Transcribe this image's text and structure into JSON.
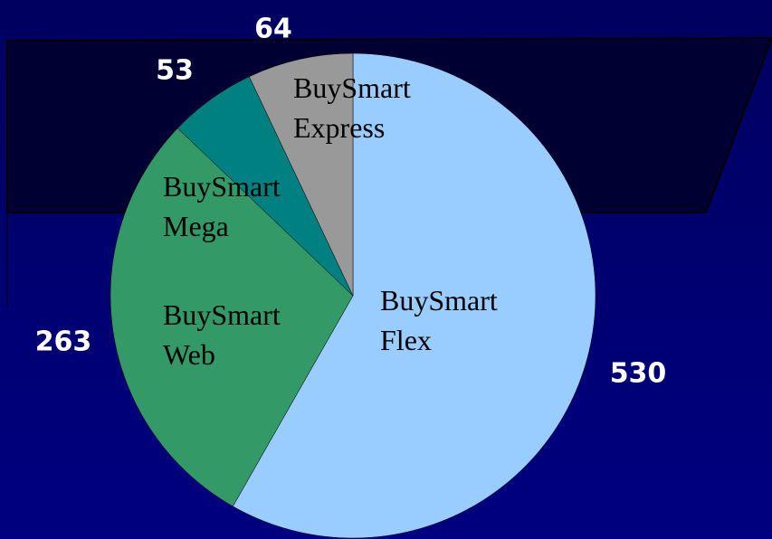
{
  "chart_data": {
    "type": "pie",
    "categories": [
      "BuySmart Flex",
      "BuySmart Web",
      "BuySmart Mega",
      "BuySmart Express"
    ],
    "values": [
      530,
      263,
      53,
      64
    ],
    "colors": [
      "#99ccff",
      "#339966",
      "#008080",
      "#999999"
    ]
  }
}
